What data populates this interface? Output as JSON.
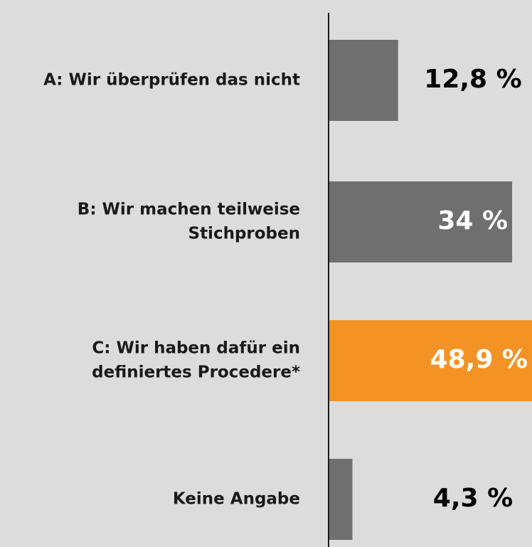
{
  "chart_data": {
    "type": "bar",
    "orientation": "horizontal",
    "categories": [
      [
        "A: Wir überprüfen das nicht"
      ],
      [
        "B: Wir machen teilweise",
        "Stichproben"
      ],
      [
        "C: Wir haben dafür ein",
        "definiertes Procedere*"
      ],
      [
        "Keine Angabe"
      ]
    ],
    "values": [
      12.8,
      34,
      48.9,
      4.3
    ],
    "value_labels": [
      "12,8 %",
      "34 %",
      "48,9 %",
      "4,3 %"
    ],
    "colors": [
      "#6f6f70",
      "#6f6f70",
      "#f39325",
      "#6f6f70"
    ]
  }
}
